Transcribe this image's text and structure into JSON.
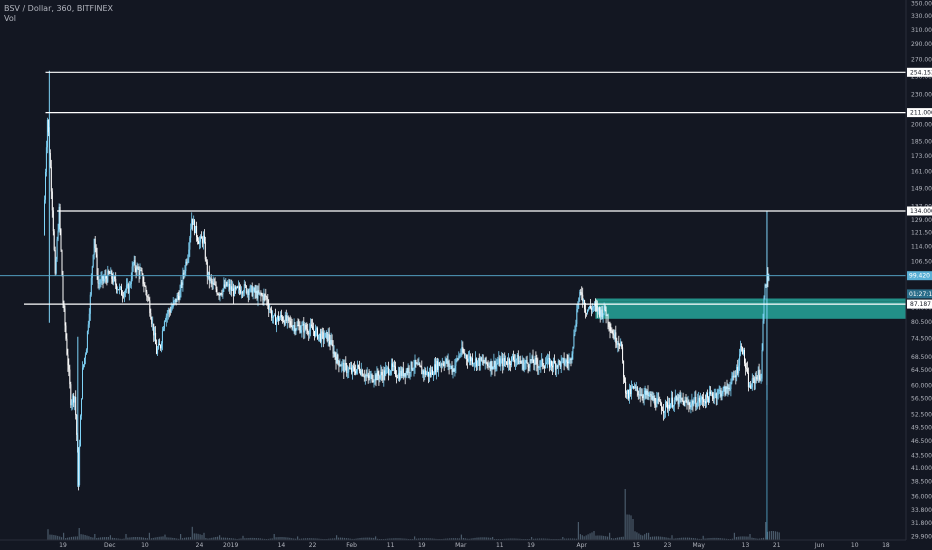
{
  "legend": {
    "symbol_line": "BSV / Dollar, 360, BITFINEX",
    "volume_label": "Vol"
  },
  "colors": {
    "background": "#131722",
    "axis_text": "#b2b5be",
    "candle_up": "#7fd3f7",
    "candle_down": "#ffffff",
    "volume": "#4a5a6a",
    "hline": "#ffffff",
    "zone_fill": "#26a69a",
    "cross_line": "#5ab0d6"
  },
  "chart_data": {
    "type": "candlestick",
    "title": "BSV / Dollar, 360, BITFINEX",
    "y_scale": "log",
    "ylim": [
      29.9,
      350
    ],
    "y_ticks": [
      350.0,
      330.0,
      310.0,
      290.0,
      270.0,
      250.0,
      230.0,
      211.0,
      200.0,
      185.0,
      173.0,
      161.0,
      149.0,
      137.0,
      129.0,
      121.5,
      114.0,
      106.5,
      99.0,
      92.5,
      86.0,
      80.5,
      74.5,
      68.5,
      64.5,
      60.0,
      56.5,
      52.5,
      49.5,
      46.5,
      43.5,
      41.0,
      38.5,
      36.0,
      33.8,
      31.8,
      29.9
    ],
    "x_ticks": [
      {
        "label": "19",
        "day": 0
      },
      {
        "label": "Dec",
        "day": 12
      },
      {
        "label": "10",
        "day": 21
      },
      {
        "label": "24",
        "day": 35
      },
      {
        "label": "2019",
        "day": 43
      },
      {
        "label": "14",
        "day": 56
      },
      {
        "label": "22",
        "day": 64
      },
      {
        "label": "Feb",
        "day": 74
      },
      {
        "label": "11",
        "day": 84
      },
      {
        "label": "19",
        "day": 92
      },
      {
        "label": "Mar",
        "day": 102
      },
      {
        "label": "11",
        "day": 112
      },
      {
        "label": "19",
        "day": 120
      },
      {
        "label": "Apr",
        "day": 133
      },
      {
        "label": "15",
        "day": 147
      },
      {
        "label": "23",
        "day": 155
      },
      {
        "label": "May",
        "day": 163
      },
      {
        "label": "13",
        "day": 175
      },
      {
        "label": "21",
        "day": 183
      },
      {
        "label": "Jun",
        "day": 194
      },
      {
        "label": "10",
        "day": 203
      },
      {
        "label": "18",
        "day": 211
      }
    ],
    "x_range_days": [
      -5,
      219
    ],
    "horizontal_levels": [
      {
        "value": 254.153,
        "label": "254.153",
        "start_day": -4.5
      },
      {
        "value": 211.0,
        "label": "211.000",
        "start_day": -4.5
      },
      {
        "value": 134.0,
        "label": "134.000",
        "start_day": -1.5
      },
      {
        "value": 87.187,
        "label": "87.187",
        "start_day": -10
      }
    ],
    "price_markers": [
      {
        "value": 99.42,
        "label": "99.420"
      },
      {
        "value": 91.4,
        "label": "01:27:17"
      }
    ],
    "zone": {
      "low": 81.5,
      "high": 89.5,
      "start_day": 136.5
    },
    "close_series": [
      {
        "day": -5,
        "close": 120
      },
      {
        "day": -4,
        "close": 205
      },
      {
        "day": -3,
        "close": 150
      },
      {
        "day": -2,
        "close": 98
      },
      {
        "day": -1,
        "close": 134
      },
      {
        "day": 0,
        "close": 88
      },
      {
        "day": 1,
        "close": 70
      },
      {
        "day": 2,
        "close": 56
      },
      {
        "day": 3,
        "close": 57
      },
      {
        "day": 4,
        "close": 38.5
      },
      {
        "day": 5,
        "close": 64
      },
      {
        "day": 6,
        "close": 72
      },
      {
        "day": 7,
        "close": 90
      },
      {
        "day": 8,
        "close": 119
      },
      {
        "day": 9,
        "close": 96
      },
      {
        "day": 10,
        "close": 97
      },
      {
        "day": 12,
        "close": 100
      },
      {
        "day": 13,
        "close": 97
      },
      {
        "day": 15,
        "close": 92
      },
      {
        "day": 17,
        "close": 94
      },
      {
        "day": 18,
        "close": 105
      },
      {
        "day": 20,
        "close": 100
      },
      {
        "day": 22,
        "close": 88
      },
      {
        "day": 24,
        "close": 70
      },
      {
        "day": 25,
        "close": 72
      },
      {
        "day": 26,
        "close": 82
      },
      {
        "day": 28,
        "close": 86
      },
      {
        "day": 30,
        "close": 92
      },
      {
        "day": 32,
        "close": 110
      },
      {
        "day": 33,
        "close": 130
      },
      {
        "day": 34,
        "close": 122
      },
      {
        "day": 35,
        "close": 116
      },
      {
        "day": 36,
        "close": 118
      },
      {
        "day": 37,
        "close": 100
      },
      {
        "day": 38,
        "close": 96
      },
      {
        "day": 40,
        "close": 92
      },
      {
        "day": 42,
        "close": 95
      },
      {
        "day": 44,
        "close": 92
      },
      {
        "day": 46,
        "close": 94
      },
      {
        "day": 48,
        "close": 93
      },
      {
        "day": 50,
        "close": 91
      },
      {
        "day": 52,
        "close": 90
      },
      {
        "day": 54,
        "close": 81
      },
      {
        "day": 56,
        "close": 82
      },
      {
        "day": 58,
        "close": 80
      },
      {
        "day": 60,
        "close": 78.5
      },
      {
        "day": 62,
        "close": 78
      },
      {
        "day": 64,
        "close": 77.5
      },
      {
        "day": 66,
        "close": 75
      },
      {
        "day": 68,
        "close": 75
      },
      {
        "day": 70,
        "close": 68
      },
      {
        "day": 72,
        "close": 65
      },
      {
        "day": 74,
        "close": 64
      },
      {
        "day": 76,
        "close": 65
      },
      {
        "day": 78,
        "close": 62
      },
      {
        "day": 80,
        "close": 62.5
      },
      {
        "day": 82,
        "close": 63
      },
      {
        "day": 84,
        "close": 65
      },
      {
        "day": 86,
        "close": 63
      },
      {
        "day": 88,
        "close": 64
      },
      {
        "day": 90,
        "close": 66
      },
      {
        "day": 92,
        "close": 64
      },
      {
        "day": 94,
        "close": 63
      },
      {
        "day": 96,
        "close": 66
      },
      {
        "day": 98,
        "close": 67
      },
      {
        "day": 100,
        "close": 64.5
      },
      {
        "day": 102,
        "close": 70
      },
      {
        "day": 104,
        "close": 68
      },
      {
        "day": 106,
        "close": 67
      },
      {
        "day": 108,
        "close": 66.5
      },
      {
        "day": 110,
        "close": 66
      },
      {
        "day": 112,
        "close": 66.5
      },
      {
        "day": 114,
        "close": 67
      },
      {
        "day": 116,
        "close": 68
      },
      {
        "day": 118,
        "close": 66
      },
      {
        "day": 120,
        "close": 67
      },
      {
        "day": 122,
        "close": 66
      },
      {
        "day": 124,
        "close": 66.5
      },
      {
        "day": 126,
        "close": 66
      },
      {
        "day": 128,
        "close": 66.5
      },
      {
        "day": 130,
        "close": 67
      },
      {
        "day": 131,
        "close": 75
      },
      {
        "day": 132,
        "close": 88
      },
      {
        "day": 133,
        "close": 92
      },
      {
        "day": 134,
        "close": 85
      },
      {
        "day": 136,
        "close": 86
      },
      {
        "day": 138,
        "close": 84
      },
      {
        "day": 139,
        "close": 85
      },
      {
        "day": 140,
        "close": 80
      },
      {
        "day": 141,
        "close": 76
      },
      {
        "day": 142,
        "close": 74
      },
      {
        "day": 143,
        "close": 73
      },
      {
        "day": 144,
        "close": 60
      },
      {
        "day": 145,
        "close": 57
      },
      {
        "day": 146,
        "close": 59
      },
      {
        "day": 148,
        "close": 58
      },
      {
        "day": 150,
        "close": 57
      },
      {
        "day": 152,
        "close": 55.5
      },
      {
        "day": 154,
        "close": 54
      },
      {
        "day": 156,
        "close": 55.5
      },
      {
        "day": 158,
        "close": 56
      },
      {
        "day": 160,
        "close": 55
      },
      {
        "day": 162,
        "close": 55.5
      },
      {
        "day": 164,
        "close": 56
      },
      {
        "day": 166,
        "close": 57
      },
      {
        "day": 168,
        "close": 58
      },
      {
        "day": 170,
        "close": 58.5
      },
      {
        "day": 172,
        "close": 62
      },
      {
        "day": 173,
        "close": 65
      },
      {
        "day": 174,
        "close": 73
      },
      {
        "day": 175,
        "close": 65
      },
      {
        "day": 176,
        "close": 59
      },
      {
        "day": 177,
        "close": 61
      },
      {
        "day": 178,
        "close": 63
      },
      {
        "day": 179,
        "close": 62.5
      },
      {
        "day": 180,
        "close": 97
      },
      {
        "day": 181,
        "close": 99.4
      }
    ],
    "volume_series": [
      {
        "day": -4,
        "rel": 0.18
      },
      {
        "day": 0,
        "rel": 0.12
      },
      {
        "day": 4,
        "rel": 0.2
      },
      {
        "day": 8,
        "rel": 0.1
      },
      {
        "day": 12,
        "rel": 0.08
      },
      {
        "day": 16,
        "rel": 0.1
      },
      {
        "day": 22,
        "rel": 0.12
      },
      {
        "day": 26,
        "rel": 0.09
      },
      {
        "day": 30,
        "rel": 0.1
      },
      {
        "day": 33,
        "rel": 0.22
      },
      {
        "day": 36,
        "rel": 0.12
      },
      {
        "day": 40,
        "rel": 0.08
      },
      {
        "day": 46,
        "rel": 0.07
      },
      {
        "day": 54,
        "rel": 0.1
      },
      {
        "day": 60,
        "rel": 0.06
      },
      {
        "day": 70,
        "rel": 0.08
      },
      {
        "day": 80,
        "rel": 0.06
      },
      {
        "day": 90,
        "rel": 0.06
      },
      {
        "day": 102,
        "rel": 0.09
      },
      {
        "day": 110,
        "rel": 0.05
      },
      {
        "day": 120,
        "rel": 0.05
      },
      {
        "day": 128,
        "rel": 0.05
      },
      {
        "day": 132,
        "rel": 0.3
      },
      {
        "day": 136,
        "rel": 0.15
      },
      {
        "day": 140,
        "rel": 0.12
      },
      {
        "day": 144,
        "rel": 0.85
      },
      {
        "day": 146,
        "rel": 0.35
      },
      {
        "day": 150,
        "rel": 0.12
      },
      {
        "day": 156,
        "rel": 0.08
      },
      {
        "day": 164,
        "rel": 0.07
      },
      {
        "day": 172,
        "rel": 0.12
      },
      {
        "day": 176,
        "rel": 0.1
      },
      {
        "day": 180,
        "rel": 0.3
      }
    ]
  }
}
